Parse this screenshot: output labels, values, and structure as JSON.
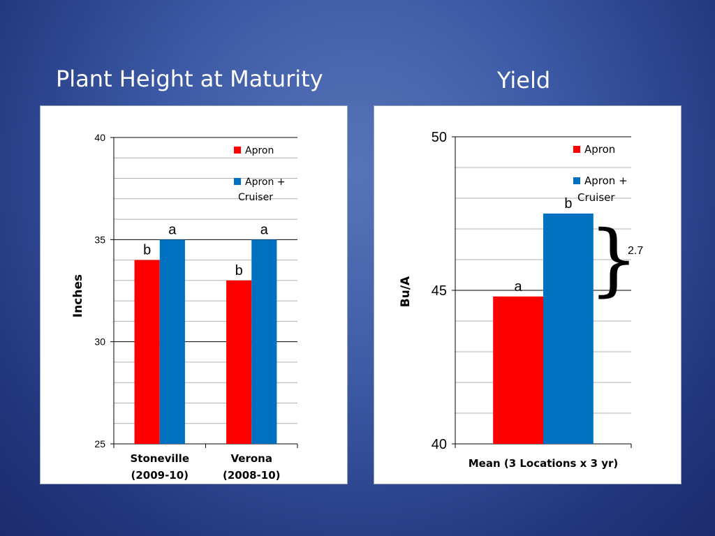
{
  "slide": {
    "title_left": "Plant Height at Maturity",
    "title_right": "Yield"
  },
  "colors": {
    "apron": "#ff0000",
    "apron_cruiser": "#0070c0",
    "gridline": "#b0b0b0",
    "major_gridline": "#000000"
  },
  "chart_data": [
    {
      "type": "bar",
      "title": "Plant Height at Maturity",
      "categories": [
        [
          "Stoneville",
          "(2009-10)"
        ],
        [
          "Verona",
          "(2008-10)"
        ]
      ],
      "series": [
        {
          "name": "Apron",
          "values": [
            34,
            33
          ],
          "labels": [
            "b",
            "b"
          ]
        },
        {
          "name": "Apron + Cruiser",
          "values": [
            35,
            35
          ],
          "labels": [
            "a",
            "a"
          ]
        }
      ],
      "legend_lines": [
        [
          "Apron"
        ],
        [
          "Apron +",
          "Cruiser"
        ]
      ],
      "xlabel": "",
      "ylabel": "Inches",
      "ylim": [
        25,
        40
      ],
      "yticks": [
        "25",
        "30",
        "35",
        "40"
      ],
      "major_step": 5,
      "minor_step": 1,
      "grid": true,
      "legend_position": "top-right"
    },
    {
      "type": "bar",
      "title": "Yield",
      "categories": [
        [
          "Mean (3 Locations  x 3 yr)"
        ]
      ],
      "series": [
        {
          "name": "Apron",
          "values": [
            44.8
          ],
          "labels": [
            "a"
          ]
        },
        {
          "name": "Apron + Cruiser",
          "values": [
            47.5
          ],
          "labels": [
            "b"
          ]
        }
      ],
      "legend_lines": [
        [
          "Apron"
        ],
        [
          "Apron +",
          "Cruiser"
        ]
      ],
      "xlabel": "",
      "ylabel": "Bu/A",
      "ylim": [
        40,
        50
      ],
      "yticks": [
        "40",
        "45",
        "50"
      ],
      "major_step": 5,
      "minor_step": 1,
      "grid": true,
      "legend_position": "top-right",
      "annotation": {
        "text": "2.7",
        "symbol": "}"
      }
    }
  ]
}
